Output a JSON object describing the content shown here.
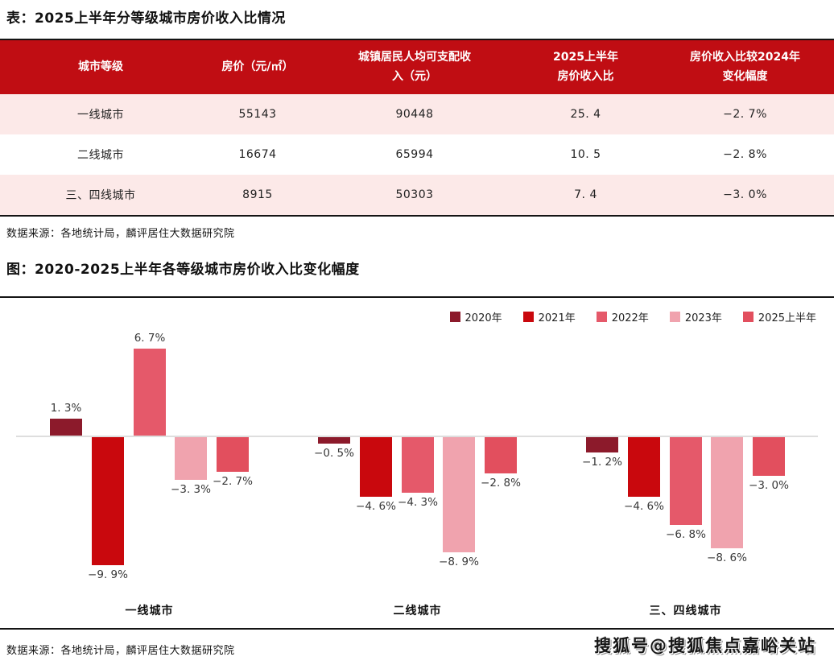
{
  "colors": {
    "table_header_bg": "#C00D13",
    "table_row_pink": "#FCE9E8",
    "axis_line": "#DEDEDE"
  },
  "table_section": {
    "title": "表：2025上半年分等级城市房价收入比情况",
    "source": "数据来源：各地统计局，麟评居住大数据研究院"
  },
  "chart_section": {
    "title": "图：2020-2025上半年各等级城市房价收入比变化幅度",
    "source": "数据来源：各地统计局，麟评居住大数据研究院",
    "watermark": "搜狐号@搜狐焦点嘉峪关站"
  },
  "chart_data": [
    {
      "type": "table",
      "title": "表：2025上半年分等级城市房价收入比情况",
      "columns": [
        "城市等级",
        "房价（元/㎡）",
        "城镇居民人均可支配收入（元）",
        "2025上半年房价收入比",
        "房价收入比较2024年变化幅度"
      ],
      "rows": [
        [
          "一线城市",
          "55143",
          "90448",
          "25.4",
          "-2.7%"
        ],
        [
          "二线城市",
          "16674",
          "65994",
          "10.5",
          "-2.8%"
        ],
        [
          "三、四线城市",
          "8915",
          "50303",
          "7.4",
          "-3.0%"
        ]
      ],
      "source": "数据来源：各地统计局，麟评居住大数据研究院"
    },
    {
      "type": "bar",
      "title": "图：2020-2025上半年各等级城市房价收入比变化幅度",
      "categories": [
        "一线城市",
        "二线城市",
        "三、四线城市"
      ],
      "series": [
        {
          "name": "2020年",
          "color": "#8C1A2B",
          "values": [
            1.3,
            -0.5,
            -1.2
          ]
        },
        {
          "name": "2021年",
          "color": "#C9080D",
          "values": [
            -9.9,
            -4.6,
            -4.6
          ]
        },
        {
          "name": "2022年",
          "color": "#E5596A",
          "values": [
            6.7,
            -4.3,
            -6.8
          ]
        },
        {
          "name": "2023年",
          "color": "#F0A3AE",
          "values": [
            -3.3,
            -8.9,
            -8.6
          ]
        },
        {
          "name": "2025上半年",
          "color": "#E24F5E",
          "values": [
            -2.7,
            -2.8,
            -3.0
          ]
        }
      ],
      "unit": "%",
      "ylim": [
        -10.5,
        7.5
      ],
      "grid": false,
      "value_labels": true,
      "legend_position": "top-right",
      "source": "数据来源：各地统计局，麟评居住大数据研究院"
    }
  ]
}
